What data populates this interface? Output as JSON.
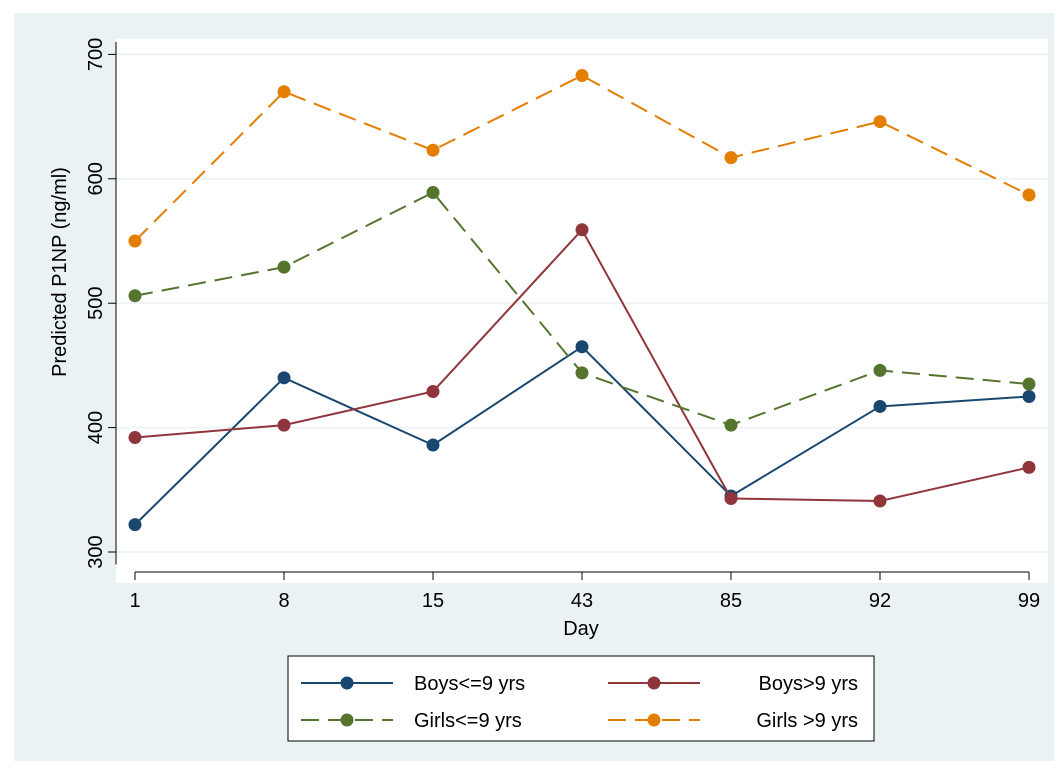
{
  "chart_data": {
    "type": "line",
    "categories": [
      "1",
      "8",
      "15",
      "43",
      "85",
      "92",
      "99"
    ],
    "xlabel": "Day",
    "ylabel": "Predicted P1NP (ng/ml)",
    "ylim": [
      290,
      710
    ],
    "yticks": [
      300,
      400,
      500,
      600,
      700
    ],
    "grid": true,
    "legend_position": "bottom",
    "series": [
      {
        "name": "Boys<=9 yrs",
        "color": "#1a476f",
        "dash": "solid",
        "values": [
          322,
          440,
          386,
          465,
          345,
          417,
          425
        ]
      },
      {
        "name": "Boys>9 yrs",
        "color": "#90353b",
        "dash": "solid",
        "values": [
          392,
          402,
          429,
          559,
          343,
          341,
          368
        ]
      },
      {
        "name": "Girls<=9 yrs",
        "color": "#55752f",
        "dash": "dashed",
        "values": [
          506,
          529,
          589,
          444,
          402,
          446,
          435
        ]
      },
      {
        "name": "Girls >9 yrs",
        "color": "#e37e00",
        "dash": "dashed",
        "values": [
          550,
          670,
          623,
          683,
          617,
          646,
          587
        ]
      }
    ]
  }
}
